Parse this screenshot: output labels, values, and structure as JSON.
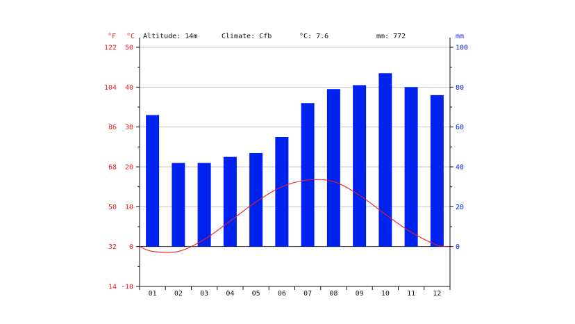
{
  "header": {
    "unit_f": "°F",
    "unit_c": "°C",
    "unit_mm": "mm",
    "altitude": "Altitude: 14m",
    "climate": "Climate: Cfb",
    "temp_avg": "°C: 7.6",
    "precip_total": "mm: 772"
  },
  "colors": {
    "temperature": "#ee1c24",
    "precipitation": "#0022ee",
    "grid": "#c8c8c8",
    "axis": "#111111"
  },
  "chart_data": {
    "type": "bar",
    "title": "",
    "categories": [
      "01",
      "02",
      "03",
      "04",
      "05",
      "06",
      "07",
      "08",
      "09",
      "10",
      "11",
      "12"
    ],
    "series": [
      {
        "type": "bar",
        "axis": "right",
        "values": [
          66,
          42,
          42,
          45,
          47,
          55,
          72,
          79,
          81,
          87,
          80,
          76
        ]
      },
      {
        "type": "line",
        "axis": "left",
        "values": [
          -1.2,
          -1.2,
          1.8,
          6.4,
          11.2,
          15.0,
          16.7,
          16.3,
          12.9,
          8.1,
          3.6,
          0.4
        ]
      }
    ],
    "y_left": {
      "ylim": [
        -10,
        50
      ],
      "ticks_c": [
        "-10",
        "0",
        "10",
        "20",
        "30",
        "40",
        "50"
      ],
      "ticks_f": [
        "14",
        "32",
        "50",
        "68",
        "86",
        "104",
        "122"
      ]
    },
    "y_right": {
      "ylim": [
        -20,
        100
      ],
      "ticks": [
        "0",
        "20",
        "40",
        "60",
        "80",
        "100"
      ]
    },
    "grid": true,
    "legend": "none"
  }
}
